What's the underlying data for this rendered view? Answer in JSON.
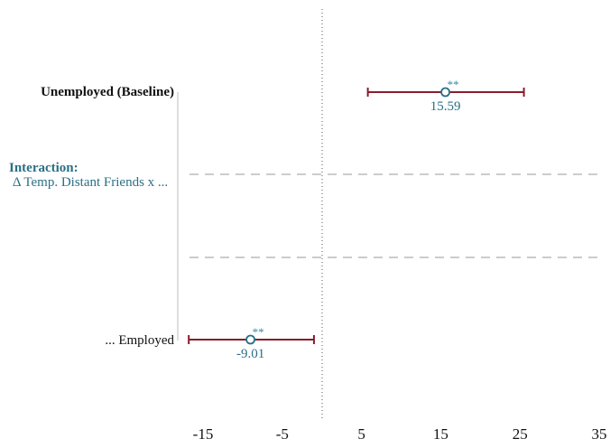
{
  "chart_data": {
    "type": "forest",
    "title": "",
    "xlabel": "",
    "ylabel": "",
    "xlim": [
      -17,
      35
    ],
    "x_ticks": [
      -15,
      -5,
      5,
      15,
      25,
      35
    ],
    "x_tick_labels": [
      "-15",
      "-5",
      "5",
      "15",
      "25",
      "35"
    ],
    "reference_line": 0,
    "section_header": {
      "title": "Interaction:",
      "subtitle": "Δ Temp. Distant Friends x ..."
    },
    "rows": [
      {
        "label": "Unemployed (Baseline)",
        "bold": true,
        "estimate": 15.59,
        "ci": [
          5.8,
          25.5
        ],
        "significance": "**",
        "estimate_label": "15.59"
      },
      {
        "label": "... Employed",
        "bold": false,
        "estimate": -9.01,
        "ci": [
          -16.8,
          -1.0
        ],
        "significance": "**",
        "estimate_label": "-9.01"
      }
    ],
    "colors": {
      "ci": "#8b1c2c",
      "marker": "#2a6f85",
      "text_accent": "#2a7085",
      "dashed": "#9a9a9a"
    }
  }
}
